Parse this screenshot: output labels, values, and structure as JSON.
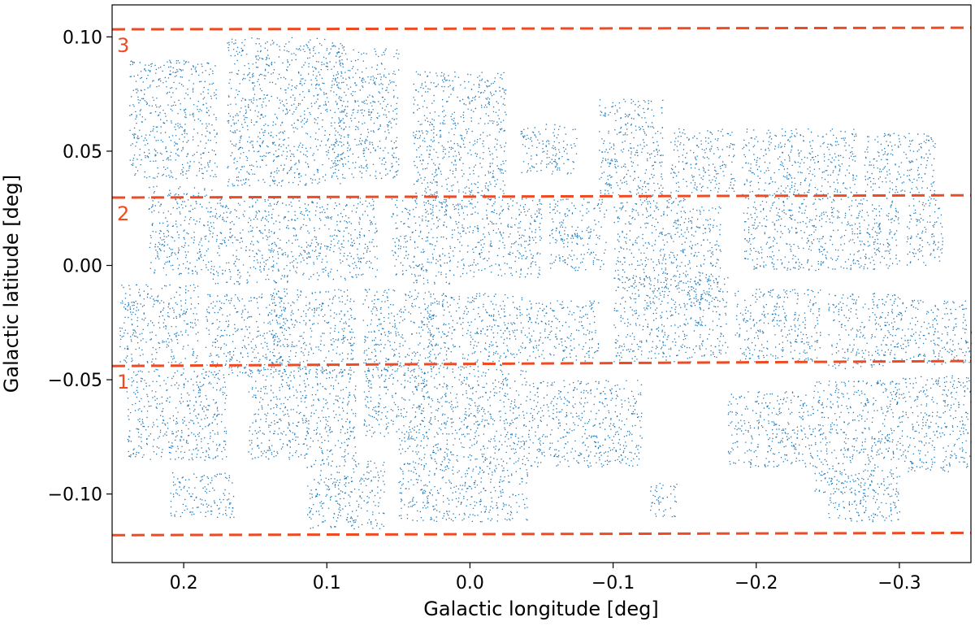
{
  "chart_data": {
    "type": "scatter",
    "title": "",
    "xlabel": "Galactic longitude [deg]",
    "ylabel": "Galactic latitude [deg]",
    "xlim": [
      0.25,
      -0.35
    ],
    "ylim": [
      -0.13,
      0.114
    ],
    "x_inverted": true,
    "grid": false,
    "legend": "none",
    "x_ticks": [
      {
        "value": 0.2,
        "label": "0.2"
      },
      {
        "value": 0.1,
        "label": "0.1"
      },
      {
        "value": 0.0,
        "label": "0.0"
      },
      {
        "value": -0.1,
        "label": "−0.1"
      },
      {
        "value": -0.2,
        "label": "−0.2"
      },
      {
        "value": -0.3,
        "label": "−0.3"
      }
    ],
    "y_ticks": [
      {
        "value": 0.1,
        "label": "0.10"
      },
      {
        "value": 0.05,
        "label": "0.05"
      },
      {
        "value": 0.0,
        "label": "0.00"
      },
      {
        "value": -0.05,
        "label": "−0.05"
      },
      {
        "value": -0.1,
        "label": "−0.10"
      }
    ],
    "point_color": "#1f77b4",
    "line_color": "#f04a23",
    "boundaries": [
      {
        "x": [
          0.25,
          -0.35
        ],
        "y": [
          0.1033,
          0.104
        ],
        "label": "3"
      },
      {
        "x": [
          0.25,
          -0.35
        ],
        "y": [
          0.0297,
          0.0307
        ],
        "label": "2"
      },
      {
        "x": [
          0.25,
          -0.35
        ],
        "y": [
          -0.044,
          -0.0418
        ],
        "label": "1"
      },
      {
        "x": [
          0.25,
          -0.35
        ],
        "y": [
          -0.118,
          -0.117
        ],
        "label": ""
      }
    ],
    "fields": [
      {
        "x": [
          0.238,
          0.177
        ],
        "y": [
          0.038,
          0.09
        ]
      },
      {
        "x": [
          0.17,
          0.088
        ],
        "y": [
          0.035,
          0.1
        ]
      },
      {
        "x": [
          0.095,
          0.05
        ],
        "y": [
          0.038,
          0.095
        ]
      },
      {
        "x": [
          0.04,
          -0.025
        ],
        "y": [
          0.03,
          0.085
        ]
      },
      {
        "x": [
          -0.035,
          -0.075
        ],
        "y": [
          0.04,
          0.062
        ]
      },
      {
        "x": [
          -0.09,
          -0.135
        ],
        "y": [
          0.03,
          0.073
        ]
      },
      {
        "x": [
          -0.14,
          -0.185
        ],
        "y": [
          0.032,
          0.06
        ]
      },
      {
        "x": [
          -0.19,
          -0.27
        ],
        "y": [
          0.03,
          0.06
        ]
      },
      {
        "x": [
          -0.275,
          -0.305
        ],
        "y": [
          0.032,
          0.058
        ]
      },
      {
        "x": [
          -0.305,
          -0.325
        ],
        "y": [
          0.03,
          0.058
        ]
      },
      {
        "x": [
          0.225,
          0.18
        ],
        "y": [
          -0.004,
          0.035
        ]
      },
      {
        "x": [
          0.18,
          0.12
        ],
        "y": [
          -0.008,
          0.03
        ]
      },
      {
        "x": [
          0.12,
          0.065
        ],
        "y": [
          -0.006,
          0.03
        ]
      },
      {
        "x": [
          0.055,
          0.01
        ],
        "y": [
          -0.008,
          0.03
        ]
      },
      {
        "x": [
          0.01,
          -0.05
        ],
        "y": [
          -0.005,
          0.03
        ]
      },
      {
        "x": [
          -0.055,
          -0.095
        ],
        "y": [
          -0.002,
          0.03
        ]
      },
      {
        "x": [
          -0.1,
          -0.15
        ],
        "y": [
          -0.01,
          0.03
        ]
      },
      {
        "x": [
          -0.15,
          -0.175
        ],
        "y": [
          -0.018,
          0.026
        ]
      },
      {
        "x": [
          -0.19,
          -0.255
        ],
        "y": [
          -0.002,
          0.03
        ]
      },
      {
        "x": [
          -0.255,
          -0.3
        ],
        "y": [
          -0.002,
          0.03
        ]
      },
      {
        "x": [
          -0.305,
          -0.33
        ],
        "y": [
          0.0,
          0.03
        ]
      },
      {
        "x": [
          0.245,
          0.19
        ],
        "y": [
          -0.043,
          -0.008
        ]
      },
      {
        "x": [
          0.185,
          0.13
        ],
        "y": [
          -0.048,
          -0.012
        ]
      },
      {
        "x": [
          0.14,
          0.08
        ],
        "y": [
          -0.048,
          -0.01
        ]
      },
      {
        "x": [
          0.075,
          0.025
        ],
        "y": [
          -0.048,
          -0.01
        ]
      },
      {
        "x": [
          0.03,
          -0.04
        ],
        "y": [
          -0.045,
          -0.012
        ]
      },
      {
        "x": [
          -0.04,
          -0.09
        ],
        "y": [
          -0.042,
          -0.015
        ]
      },
      {
        "x": [
          -0.1,
          -0.155
        ],
        "y": [
          -0.042,
          -0.005
        ]
      },
      {
        "x": [
          -0.155,
          -0.18
        ],
        "y": [
          -0.04,
          -0.005
        ]
      },
      {
        "x": [
          -0.185,
          -0.245
        ],
        "y": [
          -0.042,
          -0.01
        ]
      },
      {
        "x": [
          -0.25,
          -0.3
        ],
        "y": [
          -0.045,
          -0.012
        ]
      },
      {
        "x": [
          -0.3,
          -0.35
        ],
        "y": [
          -0.043,
          -0.015
        ]
      },
      {
        "x": [
          0.24,
          0.17
        ],
        "y": [
          -0.085,
          -0.045
        ]
      },
      {
        "x": [
          0.21,
          0.165
        ],
        "y": [
          -0.11,
          -0.09
        ]
      },
      {
        "x": [
          0.155,
          0.08
        ],
        "y": [
          -0.085,
          -0.045
        ]
      },
      {
        "x": [
          0.115,
          0.06
        ],
        "y": [
          -0.115,
          -0.085
        ]
      },
      {
        "x": [
          0.075,
          0.03
        ],
        "y": [
          -0.075,
          -0.045
        ]
      },
      {
        "x": [
          0.05,
          -0.04
        ],
        "y": [
          -0.112,
          -0.07
        ]
      },
      {
        "x": [
          0.035,
          -0.04
        ],
        "y": [
          -0.07,
          -0.045
        ]
      },
      {
        "x": [
          -0.04,
          -0.12
        ],
        "y": [
          -0.088,
          -0.05
        ]
      },
      {
        "x": [
          -0.125,
          -0.145
        ],
        "y": [
          -0.11,
          -0.095
        ]
      },
      {
        "x": [
          -0.18,
          -0.24
        ],
        "y": [
          -0.088,
          -0.055
        ]
      },
      {
        "x": [
          -0.24,
          -0.3
        ],
        "y": [
          -0.1,
          -0.05
        ]
      },
      {
        "x": [
          -0.25,
          -0.3
        ],
        "y": [
          -0.112,
          -0.095
        ]
      },
      {
        "x": [
          -0.3,
          -0.35
        ],
        "y": [
          -0.09,
          -0.048
        ]
      }
    ]
  }
}
